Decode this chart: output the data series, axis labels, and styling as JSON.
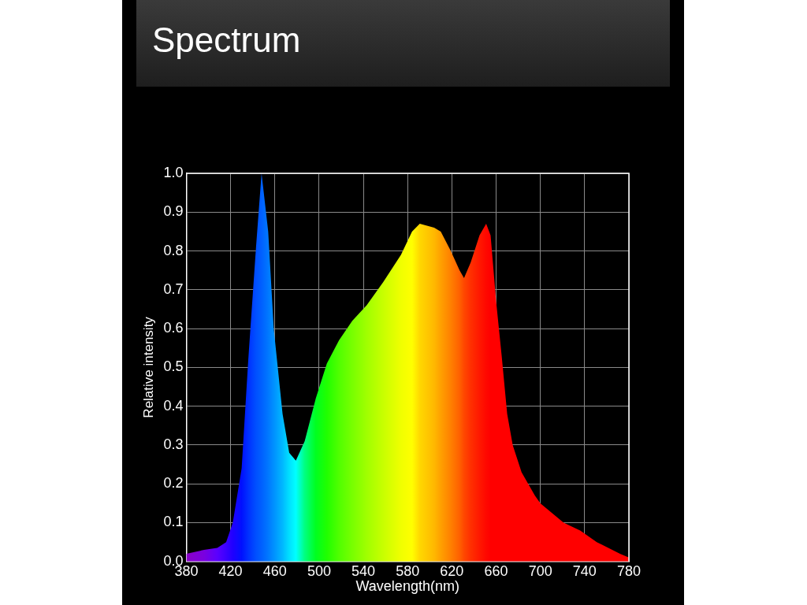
{
  "chart_data": {
    "type": "area",
    "title": "Spectrum",
    "xlabel": "Wavelength(nm)",
    "ylabel": "Relative intensity",
    "x": [
      380,
      396,
      408,
      416,
      422,
      430,
      436,
      443,
      448,
      454,
      459,
      467,
      473,
      479,
      487,
      497,
      507,
      518,
      530,
      543,
      558,
      574,
      584,
      591,
      604,
      610,
      619,
      627,
      631,
      637,
      645,
      651,
      655,
      660,
      665,
      670,
      675,
      683,
      695,
      700,
      721,
      736,
      751,
      772,
      780
    ],
    "values": [
      0.02,
      0.03,
      0.035,
      0.05,
      0.1,
      0.24,
      0.52,
      0.81,
      1.0,
      0.85,
      0.6,
      0.38,
      0.28,
      0.26,
      0.31,
      0.42,
      0.51,
      0.57,
      0.62,
      0.66,
      0.72,
      0.79,
      0.85,
      0.87,
      0.86,
      0.85,
      0.8,
      0.75,
      0.73,
      0.77,
      0.84,
      0.87,
      0.84,
      0.67,
      0.53,
      0.38,
      0.3,
      0.23,
      0.17,
      0.15,
      0.1,
      0.08,
      0.05,
      0.02,
      0.01
    ],
    "colors": [
      "#8a00c8",
      "#7a00e0",
      "#5a00ff",
      "#3a00ff",
      "#2000ff",
      "#0010ff",
      "#0030ff",
      "#0050ff",
      "#0060ff",
      "#0078ff",
      "#0090ff",
      "#00b8ff",
      "#00e0ff",
      "#00ffff",
      "#00ff80",
      "#00ff20",
      "#20ff00",
      "#50ff00",
      "#78ff00",
      "#a0ff00",
      "#c8ff00",
      "#f0ff00",
      "#ffff00",
      "#ffd800",
      "#ffb800",
      "#ffa000",
      "#ff8000",
      "#ff6000",
      "#ff4800",
      "#ff3000",
      "#ff1800",
      "#ff0800",
      "#ff0000",
      "#ff0000",
      "#ff0000",
      "#ff0000",
      "#ff0000",
      "#ff0000",
      "#ff0000",
      "#ff0000",
      "#ff0000",
      "#ff0000",
      "#ff0000",
      "#ff0000",
      "#ff0000"
    ],
    "xlim": [
      380,
      780
    ],
    "ylim": [
      0,
      1
    ],
    "xticks": [
      380,
      420,
      460,
      500,
      540,
      580,
      620,
      660,
      700,
      740,
      780
    ],
    "yticks": [
      {
        "value": 0,
        "label": "0.0"
      },
      {
        "value": 0.1,
        "label": "0.1"
      },
      {
        "value": 0.2,
        "label": "0.2"
      },
      {
        "value": 0.3,
        "label": "0.3"
      },
      {
        "value": 0.4,
        "label": "0.4"
      },
      {
        "value": 0.5,
        "label": "0.5"
      },
      {
        "value": 0.6,
        "label": "0.6"
      },
      {
        "value": 0.7,
        "label": "0.7"
      },
      {
        "value": 0.8,
        "label": "0.8"
      },
      {
        "value": 0.9,
        "label": "0.9"
      },
      {
        "value": 1,
        "label": "1.0"
      }
    ],
    "grid": true,
    "marker": "none"
  }
}
